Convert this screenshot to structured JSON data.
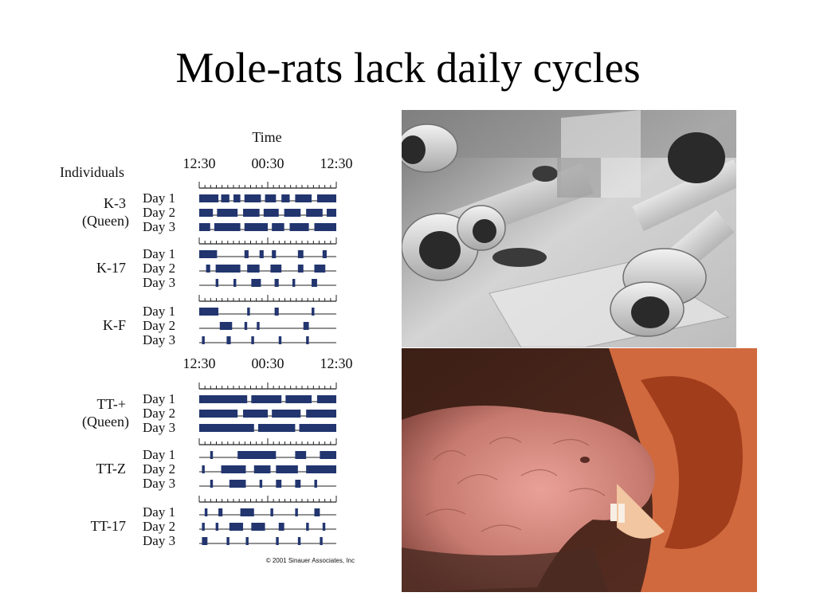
{
  "slide": {
    "title": "Mole-rats lack daily cycles"
  },
  "figure": {
    "time_label": "Time",
    "individuals_label": "Individuals",
    "time_ticks": [
      "12:30",
      "00:30",
      "12:30"
    ],
    "credit": "© 2001 Sinauer Associates, Inc",
    "groups": [
      {
        "name": "K-3",
        "subname": "(Queen)",
        "days": [
          "Day 1",
          "Day 2",
          "Day 3"
        ],
        "activity": [
          [
            [
              0,
              0.14
            ],
            [
              0.16,
              0.22
            ],
            [
              0.25,
              0.3
            ],
            [
              0.33,
              0.45
            ],
            [
              0.48,
              0.56
            ],
            [
              0.6,
              0.66
            ],
            [
              0.7,
              0.82
            ],
            [
              0.86,
              1
            ]
          ],
          [
            [
              0,
              0.1
            ],
            [
              0.13,
              0.28
            ],
            [
              0.32,
              0.44
            ],
            [
              0.47,
              0.58
            ],
            [
              0.62,
              0.74
            ],
            [
              0.78,
              0.9
            ],
            [
              0.93,
              1
            ]
          ],
          [
            [
              0,
              0.08
            ],
            [
              0.11,
              0.3
            ],
            [
              0.33,
              0.5
            ],
            [
              0.53,
              0.62
            ],
            [
              0.66,
              0.8
            ],
            [
              0.84,
              1
            ]
          ]
        ]
      },
      {
        "name": "K-17",
        "subname": "",
        "days": [
          "Day 1",
          "Day 2",
          "Day 3"
        ],
        "activity": [
          [
            [
              0,
              0.13
            ],
            [
              0.33,
              0.36
            ],
            [
              0.44,
              0.47
            ],
            [
              0.53,
              0.56
            ],
            [
              0.72,
              0.76
            ],
            [
              0.9,
              0.93
            ]
          ],
          [
            [
              0.05,
              0.08
            ],
            [
              0.12,
              0.3
            ],
            [
              0.35,
              0.44
            ],
            [
              0.52,
              0.6
            ],
            [
              0.72,
              0.76
            ],
            [
              0.84,
              0.92
            ]
          ],
          [
            [
              0.12,
              0.14
            ],
            [
              0.25,
              0.27
            ],
            [
              0.38,
              0.45
            ],
            [
              0.55,
              0.58
            ],
            [
              0.68,
              0.7
            ],
            [
              0.82,
              0.86
            ]
          ]
        ]
      },
      {
        "name": "K-F",
        "subname": "",
        "days": [
          "Day 1",
          "Day 2",
          "Day 3"
        ],
        "activity": [
          [
            [
              0,
              0.14
            ],
            [
              0.35,
              0.37
            ],
            [
              0.55,
              0.58
            ],
            [
              0.82,
              0.84
            ]
          ],
          [
            [
              0.15,
              0.24
            ],
            [
              0.33,
              0.35
            ],
            [
              0.42,
              0.44
            ],
            [
              0.76,
              0.8
            ]
          ],
          [
            [
              0.02,
              0.04
            ],
            [
              0.2,
              0.23
            ],
            [
              0.38,
              0.4
            ],
            [
              0.58,
              0.6
            ],
            [
              0.78,
              0.8
            ]
          ]
        ]
      },
      {
        "name": "TT-+",
        "subname": "(Queen)",
        "days": [
          "Day 1",
          "Day 2",
          "Day 3"
        ],
        "activity": [
          [
            [
              0,
              0.35
            ],
            [
              0.38,
              0.6
            ],
            [
              0.63,
              0.82
            ],
            [
              0.86,
              1
            ]
          ],
          [
            [
              0,
              0.28
            ],
            [
              0.32,
              0.5
            ],
            [
              0.53,
              0.74
            ],
            [
              0.78,
              1
            ]
          ],
          [
            [
              0,
              0.4
            ],
            [
              0.43,
              0.7
            ],
            [
              0.73,
              1
            ]
          ]
        ]
      },
      {
        "name": "TT-Z",
        "subname": "",
        "days": [
          "Day 1",
          "Day 2",
          "Day 3"
        ],
        "activity": [
          [
            [
              0.08,
              0.1
            ],
            [
              0.28,
              0.56
            ],
            [
              0.7,
              0.78
            ],
            [
              0.88,
              1
            ]
          ],
          [
            [
              0.02,
              0.04
            ],
            [
              0.16,
              0.34
            ],
            [
              0.4,
              0.52
            ],
            [
              0.56,
              0.72
            ],
            [
              0.78,
              1
            ]
          ],
          [
            [
              0.08,
              0.1
            ],
            [
              0.22,
              0.34
            ],
            [
              0.44,
              0.46
            ],
            [
              0.56,
              0.6
            ],
            [
              0.7,
              0.74
            ],
            [
              0.84,
              0.86
            ]
          ]
        ]
      },
      {
        "name": "TT-17",
        "subname": "",
        "days": [
          "Day 1",
          "Day 2",
          "Day 3"
        ],
        "activity": [
          [
            [
              0.04,
              0.06
            ],
            [
              0.14,
              0.17
            ],
            [
              0.3,
              0.4
            ],
            [
              0.52,
              0.54
            ],
            [
              0.7,
              0.72
            ],
            [
              0.84,
              0.88
            ]
          ],
          [
            [
              0.02,
              0.04
            ],
            [
              0.12,
              0.14
            ],
            [
              0.22,
              0.32
            ],
            [
              0.38,
              0.48
            ],
            [
              0.58,
              0.62
            ],
            [
              0.78,
              0.8
            ],
            [
              0.9,
              0.92
            ]
          ],
          [
            [
              0.02,
              0.06
            ],
            [
              0.2,
              0.22
            ],
            [
              0.34,
              0.36
            ],
            [
              0.56,
              0.58
            ],
            [
              0.72,
              0.74
            ],
            [
              0.88,
              0.9
            ]
          ]
        ]
      }
    ]
  },
  "colors": {
    "activity": "#22356f",
    "line": "#222222",
    "text": "#111111"
  }
}
